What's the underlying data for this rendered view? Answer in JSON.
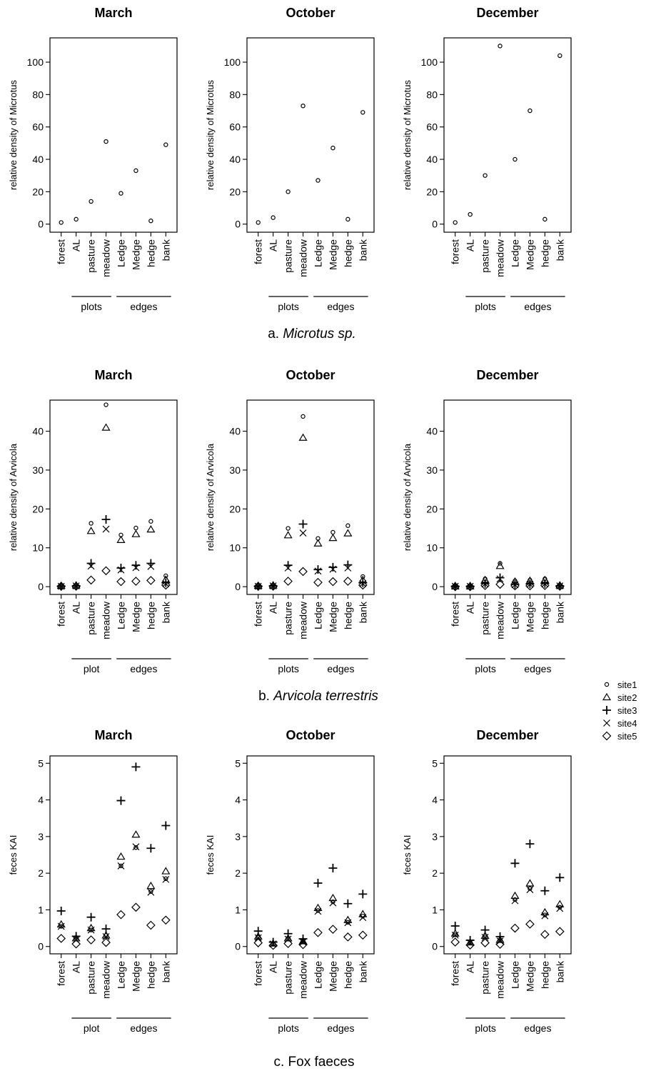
{
  "captions": {
    "a_prefix": "a. ",
    "a_species": "Microtus sp.",
    "b_prefix": "b. ",
    "b_species": "Arvicola terrestris",
    "c": "c. Fox faeces"
  },
  "legend": {
    "entries": [
      {
        "name": "site1",
        "marker": "circle"
      },
      {
        "name": "site2",
        "marker": "triangle"
      },
      {
        "name": "site3",
        "marker": "plus"
      },
      {
        "name": "site4",
        "marker": "cross"
      },
      {
        "name": "site5",
        "marker": "diamond"
      }
    ]
  },
  "chart_data": [
    {
      "type": "scatter",
      "title": "March",
      "ylabel": "relative density of Microtus",
      "ylim": [
        -5,
        115
      ],
      "yticks": [
        0,
        20,
        40,
        60,
        80,
        100
      ],
      "categories": [
        "forest",
        "AL",
        "pasture",
        "meadow",
        "Ledge",
        "Medge",
        "hedge",
        "bank"
      ],
      "groups": [
        {
          "label": "plots",
          "from": 1,
          "to": 3
        },
        {
          "label": "edges",
          "from": 4,
          "to": 7
        }
      ],
      "series": [
        {
          "marker": "circle",
          "values": [
            1,
            3,
            14,
            51,
            19,
            33,
            2,
            49
          ]
        }
      ]
    },
    {
      "type": "scatter",
      "title": "October",
      "ylabel": "relative density of Microtus",
      "ylim": [
        -5,
        115
      ],
      "yticks": [
        0,
        20,
        40,
        60,
        80,
        100
      ],
      "categories": [
        "forest",
        "AL",
        "pasture",
        "meadow",
        "Ledge",
        "Medge",
        "hedge",
        "bank"
      ],
      "groups": [
        {
          "label": "plots",
          "from": 1,
          "to": 3
        },
        {
          "label": "edges",
          "from": 4,
          "to": 7
        }
      ],
      "series": [
        {
          "marker": "circle",
          "values": [
            1,
            4,
            20,
            73,
            27,
            47,
            3,
            69
          ]
        }
      ]
    },
    {
      "type": "scatter",
      "title": "December",
      "ylabel": "relative density of Microtus",
      "ylim": [
        -5,
        115
      ],
      "yticks": [
        0,
        20,
        40,
        60,
        80,
        100
      ],
      "categories": [
        "forest",
        "AL",
        "pasture",
        "meadow",
        "Ledge",
        "Medge",
        "hedge",
        "bank"
      ],
      "groups": [
        {
          "label": "plots",
          "from": 1,
          "to": 3
        },
        {
          "label": "edges",
          "from": 4,
          "to": 7
        }
      ],
      "series": [
        {
          "marker": "circle",
          "values": [
            1,
            6,
            30,
            110,
            40,
            70,
            3,
            104
          ]
        }
      ]
    },
    {
      "type": "scatter",
      "title": "March",
      "ylabel": "relative density of Arvicola",
      "ylim": [
        -2,
        48
      ],
      "yticks": [
        0,
        10,
        20,
        30,
        40
      ],
      "categories": [
        "forest",
        "AL",
        "pasture",
        "meadow",
        "Ledge",
        "Medge",
        "hedge",
        "bank"
      ],
      "groups": [
        {
          "label": "plot",
          "from": 1,
          "to": 3
        },
        {
          "label": "edges",
          "from": 4,
          "to": 7
        }
      ],
      "series": [
        {
          "name": "site1",
          "marker": "circle",
          "values": [
            0.3,
            0.4,
            16.3,
            46.8,
            13.3,
            15.1,
            16.8,
            2.8
          ]
        },
        {
          "name": "site2",
          "marker": "triangle",
          "values": [
            0.2,
            0.3,
            14.3,
            40.9,
            12.0,
            13.5,
            14.7,
            1.8
          ]
        },
        {
          "name": "site3",
          "marker": "plus",
          "values": [
            0.1,
            0.2,
            6.0,
            17.3,
            4.8,
            5.5,
            6.0,
            1.0
          ]
        },
        {
          "name": "site4",
          "marker": "cross",
          "values": [
            0.1,
            0.2,
            5.3,
            14.8,
            4.3,
            4.9,
            5.2,
            0.8
          ]
        },
        {
          "name": "site5",
          "marker": "diamond",
          "values": [
            0.1,
            0.1,
            1.7,
            4.1,
            1.3,
            1.4,
            1.6,
            0.4
          ]
        }
      ]
    },
    {
      "type": "scatter",
      "title": "October",
      "ylabel": "relative density of Arvicola",
      "ylim": [
        -2,
        48
      ],
      "yticks": [
        0,
        10,
        20,
        30,
        40
      ],
      "categories": [
        "forest",
        "AL",
        "pasture",
        "meadow",
        "Ledge",
        "Medge",
        "hedge",
        "bank"
      ],
      "groups": [
        {
          "label": "plots",
          "from": 1,
          "to": 3
        },
        {
          "label": "edges",
          "from": 4,
          "to": 7
        }
      ],
      "series": [
        {
          "name": "site1",
          "marker": "circle",
          "values": [
            0.3,
            0.4,
            15.0,
            43.8,
            12.4,
            14.0,
            15.7,
            2.6
          ]
        },
        {
          "name": "site2",
          "marker": "triangle",
          "values": [
            0.2,
            0.3,
            13.2,
            38.3,
            11.1,
            12.5,
            13.7,
            1.7
          ]
        },
        {
          "name": "site3",
          "marker": "plus",
          "values": [
            0.1,
            0.2,
            5.5,
            16.1,
            4.4,
            5.0,
            5.6,
            1.0
          ]
        },
        {
          "name": "site4",
          "marker": "cross",
          "values": [
            0.1,
            0.2,
            4.8,
            13.8,
            4.0,
            4.5,
            4.8,
            0.8
          ]
        },
        {
          "name": "site5",
          "marker": "diamond",
          "values": [
            0.1,
            0.1,
            1.4,
            3.9,
            1.1,
            1.3,
            1.4,
            0.4
          ]
        }
      ]
    },
    {
      "type": "scatter",
      "title": "December",
      "ylabel": "relative density of Arvicola",
      "ylim": [
        -2,
        48
      ],
      "yticks": [
        0,
        10,
        20,
        30,
        40
      ],
      "categories": [
        "forest",
        "AL",
        "pasture",
        "meadow",
        "Ledge",
        "Medge",
        "hedge",
        "bank"
      ],
      "groups": [
        {
          "label": "plots",
          "from": 1,
          "to": 3
        },
        {
          "label": "edges",
          "from": 4,
          "to": 7
        }
      ],
      "series": [
        {
          "name": "site1",
          "marker": "circle",
          "values": [
            0.2,
            0.2,
            2.0,
            6.0,
            1.5,
            1.7,
            2.0,
            0.4
          ]
        },
        {
          "name": "site2",
          "marker": "triangle",
          "values": [
            0.1,
            0.1,
            1.7,
            5.3,
            1.3,
            1.5,
            1.7,
            0.3
          ]
        },
        {
          "name": "site3",
          "marker": "plus",
          "values": [
            0.1,
            0.1,
            0.8,
            2.3,
            0.6,
            0.7,
            0.8,
            0.2
          ]
        },
        {
          "name": "site4",
          "marker": "cross",
          "values": [
            0.1,
            0.1,
            0.7,
            2.0,
            0.5,
            0.6,
            0.7,
            0.2
          ]
        },
        {
          "name": "site5",
          "marker": "diamond",
          "values": [
            0.0,
            0.0,
            0.3,
            0.6,
            0.2,
            0.2,
            0.3,
            0.1
          ]
        }
      ]
    },
    {
      "type": "scatter",
      "title": "March",
      "ylabel": "feces KAI",
      "ylim": [
        -0.2,
        5.2
      ],
      "yticks": [
        0,
        1,
        2,
        3,
        4,
        5
      ],
      "categories": [
        "forest",
        "AL",
        "pasture",
        "meadow",
        "Ledge",
        "Medge",
        "hedge",
        "bank"
      ],
      "groups": [
        {
          "label": "plot",
          "from": 1,
          "to": 3
        },
        {
          "label": "edges",
          "from": 4,
          "to": 7
        }
      ],
      "series": [
        {
          "name": "site1",
          "marker": "circle",
          "values": [
            0.55,
            0.2,
            0.45,
            0.3,
            2.2,
            2.7,
            1.5,
            1.85
          ]
        },
        {
          "name": "site2",
          "marker": "triangle",
          "values": [
            0.6,
            0.22,
            0.5,
            0.3,
            2.45,
            3.05,
            1.65,
            2.05
          ]
        },
        {
          "name": "site3",
          "marker": "plus",
          "values": [
            0.97,
            0.28,
            0.8,
            0.48,
            3.98,
            4.9,
            2.68,
            3.3
          ]
        },
        {
          "name": "site4",
          "marker": "cross",
          "values": [
            0.55,
            0.18,
            0.45,
            0.27,
            2.2,
            2.72,
            1.48,
            1.83
          ]
        },
        {
          "name": "site5",
          "marker": "diamond",
          "values": [
            0.22,
            0.07,
            0.18,
            0.11,
            0.87,
            1.07,
            0.58,
            0.72
          ]
        }
      ]
    },
    {
      "type": "scatter",
      "title": "October",
      "ylabel": "feces KAI",
      "ylim": [
        -0.2,
        5.2
      ],
      "yticks": [
        0,
        1,
        2,
        3,
        4,
        5
      ],
      "categories": [
        "forest",
        "AL",
        "pasture",
        "meadow",
        "Ledge",
        "Medge",
        "hedge",
        "bank"
      ],
      "groups": [
        {
          "label": "plots",
          "from": 1,
          "to": 3
        },
        {
          "label": "edges",
          "from": 4,
          "to": 7
        }
      ],
      "series": [
        {
          "name": "site1",
          "marker": "circle",
          "values": [
            0.25,
            0.07,
            0.2,
            0.13,
            0.98,
            1.22,
            0.66,
            0.83
          ]
        },
        {
          "name": "site2",
          "marker": "triangle",
          "values": [
            0.27,
            0.08,
            0.22,
            0.14,
            1.05,
            1.32,
            0.72,
            0.88
          ]
        },
        {
          "name": "site3",
          "marker": "plus",
          "values": [
            0.42,
            0.12,
            0.35,
            0.21,
            1.73,
            2.14,
            1.17,
            1.43
          ]
        },
        {
          "name": "site4",
          "marker": "cross",
          "values": [
            0.24,
            0.07,
            0.2,
            0.12,
            0.96,
            1.19,
            0.65,
            0.79
          ]
        },
        {
          "name": "site5",
          "marker": "diamond",
          "values": [
            0.1,
            0.03,
            0.08,
            0.05,
            0.38,
            0.47,
            0.26,
            0.31
          ]
        }
      ]
    },
    {
      "type": "scatter",
      "title": "December",
      "ylabel": "feces KAI",
      "ylim": [
        -0.2,
        5.2
      ],
      "yticks": [
        0,
        1,
        2,
        3,
        4,
        5
      ],
      "categories": [
        "forest",
        "AL",
        "pasture",
        "meadow",
        "Ledge",
        "Medge",
        "hedge",
        "bank"
      ],
      "groups": [
        {
          "label": "plots",
          "from": 1,
          "to": 3
        },
        {
          "label": "edges",
          "from": 4,
          "to": 7
        }
      ],
      "series": [
        {
          "name": "site1",
          "marker": "circle",
          "values": [
            0.32,
            0.1,
            0.26,
            0.16,
            1.28,
            1.58,
            0.86,
            1.07
          ]
        },
        {
          "name": "site2",
          "marker": "triangle",
          "values": [
            0.35,
            0.11,
            0.29,
            0.18,
            1.38,
            1.72,
            0.93,
            1.15
          ]
        },
        {
          "name": "site3",
          "marker": "plus",
          "values": [
            0.56,
            0.17,
            0.45,
            0.27,
            2.27,
            2.8,
            1.52,
            1.88
          ]
        },
        {
          "name": "site4",
          "marker": "cross",
          "values": [
            0.31,
            0.1,
            0.25,
            0.15,
            1.25,
            1.55,
            0.84,
            1.04
          ]
        },
        {
          "name": "site5",
          "marker": "diamond",
          "values": [
            0.12,
            0.04,
            0.1,
            0.06,
            0.5,
            0.61,
            0.33,
            0.41
          ]
        }
      ]
    }
  ]
}
